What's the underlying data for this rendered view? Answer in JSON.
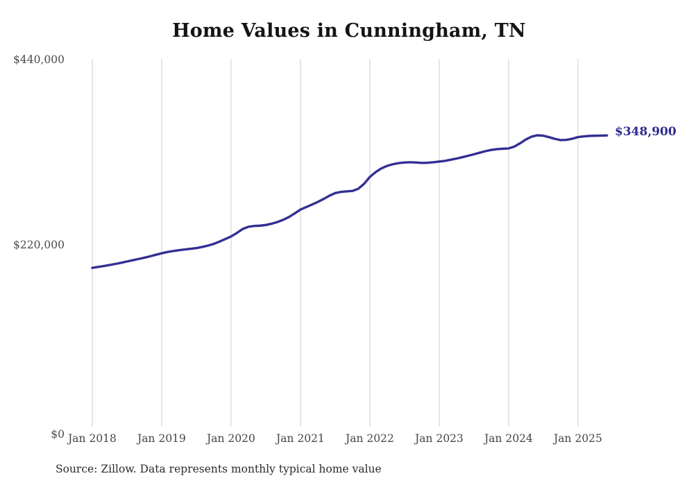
{
  "title": "Home Values in Cunningham, TN",
  "y_axis": {
    "labels": [
      "$440,000",
      "$220,000",
      "$0"
    ]
  },
  "x_axis": {
    "labels": [
      "Jan 2018",
      "Jan 2019",
      "Jan 2020",
      "Jan 2021",
      "Jan 2022",
      "Jan 2023",
      "Jan 2024",
      "Jan 2025"
    ]
  },
  "end_label": {
    "text": "$348,900"
  },
  "source": "Source: Zillow. Data represents monthly typical home value",
  "colors": {
    "line": "#332f94",
    "grid": "#cccccc",
    "annotation": "#2e2b8e",
    "title_text": "#141414",
    "axis_text": "#4a4a4a",
    "source_text": "#2a2a2a",
    "background": "#ffffff"
  },
  "chart_data": {
    "type": "line",
    "title": "Home Values in Cunningham, TN",
    "xlabel": "",
    "ylabel": "",
    "ylim": [
      0,
      440000
    ],
    "y_ticks": [
      0,
      220000,
      440000
    ],
    "y_tick_labels": [
      "$0",
      "$220,000",
      "$440,000"
    ],
    "x_tick_labels": [
      "Jan 2018",
      "Jan 2019",
      "Jan 2020",
      "Jan 2021",
      "Jan 2022",
      "Jan 2023",
      "Jan 2024",
      "Jan 2025"
    ],
    "grid": "vertical-only",
    "legend": "none",
    "end_annotation": {
      "text": "$348,900",
      "value": 348900,
      "month": "2025-06"
    },
    "series": [
      {
        "name": "Monthly typical home value",
        "months": [
          "2018-01",
          "2018-02",
          "2018-03",
          "2018-04",
          "2018-05",
          "2018-06",
          "2018-07",
          "2018-08",
          "2018-09",
          "2018-10",
          "2018-11",
          "2018-12",
          "2019-01",
          "2019-02",
          "2019-03",
          "2019-04",
          "2019-05",
          "2019-06",
          "2019-07",
          "2019-08",
          "2019-09",
          "2019-10",
          "2019-11",
          "2019-12",
          "2020-01",
          "2020-02",
          "2020-03",
          "2020-04",
          "2020-05",
          "2020-06",
          "2020-07",
          "2020-08",
          "2020-09",
          "2020-10",
          "2020-11",
          "2020-12",
          "2021-01",
          "2021-02",
          "2021-03",
          "2021-04",
          "2021-05",
          "2021-06",
          "2021-07",
          "2021-08",
          "2021-09",
          "2021-10",
          "2021-11",
          "2021-12",
          "2022-01",
          "2022-02",
          "2022-03",
          "2022-04",
          "2022-05",
          "2022-06",
          "2022-07",
          "2022-08",
          "2022-09",
          "2022-10",
          "2022-11",
          "2022-12",
          "2023-01",
          "2023-02",
          "2023-03",
          "2023-04",
          "2023-05",
          "2023-06",
          "2023-07",
          "2023-08",
          "2023-09",
          "2023-10",
          "2023-11",
          "2023-12",
          "2024-01",
          "2024-02",
          "2024-03",
          "2024-04",
          "2024-05",
          "2024-06",
          "2024-07",
          "2024-08",
          "2024-09",
          "2024-10",
          "2024-11",
          "2024-12",
          "2025-01",
          "2025-02",
          "2025-03",
          "2025-04",
          "2025-05",
          "2025-06"
        ],
        "values": [
          191000,
          192100,
          193200,
          194400,
          195700,
          197100,
          198600,
          200100,
          201600,
          203100,
          204800,
          206600,
          208400,
          209900,
          211100,
          212100,
          212900,
          213700,
          214600,
          215900,
          217500,
          219600,
          222300,
          225300,
          228400,
          232600,
          237300,
          240000,
          240900,
          241300,
          242100,
          243600,
          245600,
          248200,
          251600,
          255900,
          260500,
          263500,
          266500,
          269600,
          273100,
          277000,
          280100,
          281600,
          282200,
          282700,
          285300,
          291200,
          299400,
          305100,
          309600,
          312600,
          314600,
          315900,
          316600,
          316900,
          316600,
          316100,
          316300,
          316900,
          317700,
          318600,
          319900,
          321300,
          322900,
          324600,
          326400,
          328300,
          330100,
          331600,
          332500,
          333000,
          333400,
          335600,
          339600,
          344100,
          347500,
          349100,
          348500,
          346800,
          344800,
          343300,
          343600,
          344900,
          346900,
          347700,
          348300,
          348500,
          348700,
          348900
        ]
      }
    ]
  }
}
